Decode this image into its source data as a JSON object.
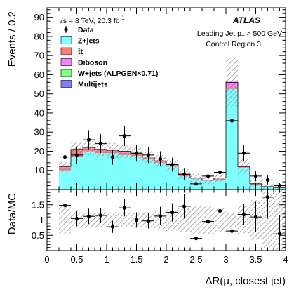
{
  "chart_data": [
    {
      "type": "histogram",
      "panel": "main",
      "ylabel": "Events / 0.2",
      "ylim": [
        0,
        95
      ],
      "y_ticks": [
        10,
        20,
        30,
        40,
        50,
        60,
        70,
        80,
        90
      ],
      "xlim": [
        0,
        4
      ],
      "grid": false,
      "legend_position": "top-left",
      "atlas_label": "ATLAS",
      "energy_text": "√s = 8 TeV, 20.3 fb",
      "energy_sup": "-1",
      "info_line1_pre": "Leading Jet p",
      "info_line1_sub": "T",
      "info_line1_post": " > 500 GeV",
      "info_line2": "Control Region 3",
      "legend": [
        {
          "label": "Data",
          "kind": "marker",
          "color": "#000000"
        },
        {
          "label": "Z+jets",
          "kind": "box",
          "color": "#80ffff"
        },
        {
          "label": "t̄t",
          "kind": "box",
          "color": "#ff7b7b"
        },
        {
          "label": "Diboson",
          "kind": "box",
          "color": "#ff80ff"
        },
        {
          "label": "W+jets (ALPGEN×0.71)",
          "kind": "box",
          "color": "#80ff80"
        },
        {
          "label": "Multijets",
          "kind": "box",
          "color": "#8080ff"
        }
      ],
      "bin_edges": [
        0.2,
        0.4,
        0.6,
        0.8,
        1.0,
        1.2,
        1.4,
        1.6,
        1.8,
        2.0,
        2.2,
        2.4,
        2.6,
        2.8,
        3.0,
        3.2,
        3.4,
        3.6,
        3.8,
        4.0
      ],
      "mc_total": [
        12,
        21,
        22,
        21,
        20.5,
        20,
        19,
        17,
        15,
        13,
        8,
        6,
        5,
        6,
        56,
        12,
        3,
        1.5,
        1
      ],
      "mc_stat_unc": [
        3,
        4,
        4,
        4,
        3.8,
        3.5,
        3.2,
        3,
        3,
        3,
        2.5,
        2.2,
        2,
        2,
        13,
        4,
        2,
        1.5,
        1
      ],
      "stack": [
        {
          "name": "Z+jets",
          "color": "#80ffff",
          "values": [
            10,
            17,
            20,
            19,
            19,
            18,
            17.5,
            16,
            14,
            12,
            7,
            5.5,
            4.5,
            5,
            52.5,
            11,
            2.5,
            1.2,
            0.8
          ]
        },
        {
          "name": "t̄t",
          "color": "#ff7b7b",
          "values": [
            1.5,
            3.5,
            1.5,
            1.5,
            1.0,
            1.2,
            1.0,
            0.8,
            0.7,
            0.7,
            0.7,
            0.3,
            0.3,
            0.6,
            1.0,
            0.6,
            0.3,
            0.2,
            0.1
          ]
        },
        {
          "name": "Diboson",
          "color": "#ff80ff",
          "values": [
            0.3,
            0.3,
            0.3,
            0.3,
            0.3,
            0.5,
            0.3,
            0.1,
            0.2,
            0.2,
            0.2,
            0.1,
            0.1,
            0.2,
            2.5,
            0.3,
            0.1,
            0.05,
            0.05
          ]
        },
        {
          "name": "W+jets (ALPGEN×0.71)",
          "color": "#80ff80",
          "values": [
            0.1,
            0.1,
            0.1,
            0.1,
            0.1,
            0.2,
            0.1,
            0.05,
            0.05,
            0.05,
            0.05,
            0.05,
            0.05,
            0.1,
            0.1,
            0.05,
            0.05,
            0.03,
            0.03
          ]
        },
        {
          "name": "Multijets",
          "color": "#8080ff",
          "values": [
            0.1,
            0.1,
            0.1,
            0.1,
            0.1,
            0.1,
            0.1,
            0.05,
            0.05,
            0.05,
            0.05,
            0.05,
            0.05,
            0.1,
            0.1,
            0.05,
            0.05,
            0.02,
            0.02
          ]
        }
      ],
      "data": {
        "x": [
          0.3,
          0.5,
          0.7,
          0.9,
          1.1,
          1.3,
          1.5,
          1.7,
          1.9,
          2.1,
          2.3,
          2.5,
          2.7,
          2.9,
          3.1,
          3.3,
          3.5,
          3.7,
          3.9
        ],
        "y": [
          17,
          18,
          26,
          24,
          17,
          28,
          19,
          18,
          16,
          13,
          8,
          3,
          7,
          9,
          36,
          19,
          7,
          5,
          2
        ],
        "err": [
          4,
          4.5,
          5,
          5,
          4,
          5.3,
          4.4,
          4.2,
          4,
          3.6,
          2.9,
          2,
          2.7,
          3,
          6,
          4.4,
          2.7,
          2.3,
          1.5
        ]
      }
    },
    {
      "type": "scatter",
      "panel": "ratio",
      "ylabel": "Data/MC",
      "xlabel": "ΔR(μ, closest jet)",
      "ylim": [
        0,
        2
      ],
      "y_ticks": [
        0.5,
        1,
        1.5
      ],
      "x_ticks": [
        0,
        0.5,
        1,
        1.5,
        2,
        2.5,
        3,
        3.5,
        4
      ],
      "reference_line": 1,
      "band_unc": [
        0.45,
        0.25,
        0.25,
        0.25,
        0.25,
        0.22,
        0.25,
        0.25,
        0.3,
        0.35,
        0.4,
        0.45,
        0.45,
        0.4,
        0.25,
        0.45,
        0.65,
        0.9,
        1.0
      ],
      "x": [
        0.3,
        0.5,
        0.7,
        0.9,
        1.1,
        1.3,
        1.5,
        1.7,
        1.9,
        2.1,
        2.3,
        2.5,
        2.7,
        2.9,
        3.1,
        3.3,
        3.5,
        3.7,
        3.9
      ],
      "y": [
        1.48,
        1.05,
        1.12,
        1.15,
        0.78,
        1.4,
        1.0,
        0.97,
        1.13,
        1.25,
        1.45,
        0.4,
        0.95,
        1.3,
        0.64,
        1.18,
        1.1,
        1.75,
        0.55
      ],
      "err": [
        0.35,
        0.25,
        0.25,
        0.25,
        0.2,
        0.28,
        0.25,
        0.25,
        0.3,
        0.3,
        0.4,
        0.35,
        0.45,
        0.4,
        0.1,
        0.35,
        0.5,
        0.7,
        0.6
      ]
    }
  ]
}
